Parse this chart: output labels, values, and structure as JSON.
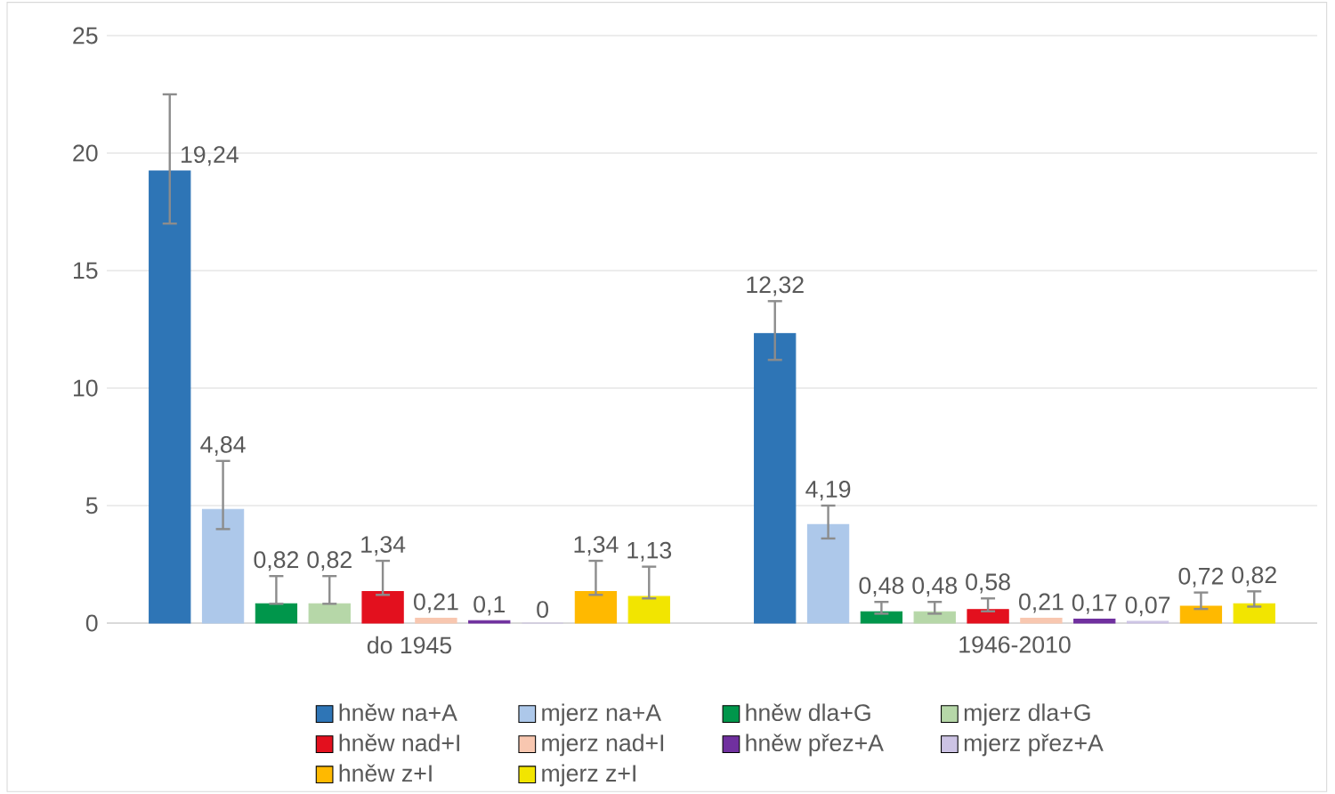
{
  "chart_data": {
    "type": "bar",
    "categories": [
      "do 1945",
      "1946-2010"
    ],
    "series": [
      {
        "name": "hněw na+A",
        "color": "#2e75b6",
        "values": [
          19.24,
          12.32
        ],
        "value_labels": [
          "19,24",
          "12,32"
        ],
        "errors": [
          [
            17.0,
            22.5
          ],
          [
            11.2,
            13.7
          ]
        ]
      },
      {
        "name": "mjerz na+A",
        "color": "#adc8ea",
        "values": [
          4.84,
          4.19
        ],
        "value_labels": [
          "4,84",
          "4,19"
        ],
        "errors": [
          [
            4.0,
            6.9
          ],
          [
            3.6,
            5.0
          ]
        ]
      },
      {
        "name": "hněw dla+G",
        "color": "#00964b",
        "values": [
          0.82,
          0.48
        ],
        "value_labels": [
          "0,82",
          "0,48"
        ],
        "errors": [
          [
            0.82,
            2.0
          ],
          [
            0.4,
            0.9
          ]
        ]
      },
      {
        "name": "mjerz dla+G",
        "color": "#b6d7a8",
        "values": [
          0.82,
          0.48
        ],
        "value_labels": [
          "0,82",
          "0,48"
        ],
        "errors": [
          [
            0.82,
            2.0
          ],
          [
            0.4,
            0.9
          ]
        ]
      },
      {
        "name": "hněw nad+I",
        "color": "#e3101e",
        "values": [
          1.34,
          0.58
        ],
        "value_labels": [
          "1,34",
          "0,58"
        ],
        "errors": [
          [
            1.2,
            2.65
          ],
          [
            0.5,
            1.05
          ]
        ]
      },
      {
        "name": "mjerz nad+I",
        "color": "#f8c7b0",
        "values": [
          0.21,
          0.21
        ],
        "value_labels": [
          "0,21",
          "0,21"
        ],
        "errors": [
          null,
          null
        ]
      },
      {
        "name": "hněw přez+A",
        "color": "#70309f",
        "values": [
          0.1,
          0.17
        ],
        "value_labels": [
          "0,1",
          "0,17"
        ],
        "errors": [
          null,
          null
        ]
      },
      {
        "name": "mjerz přez+A",
        "color": "#ccc3e4",
        "values": [
          0,
          0.07
        ],
        "value_labels": [
          "0",
          "0,07"
        ],
        "errors": [
          null,
          null
        ]
      },
      {
        "name": "hněw z+I",
        "color": "#ffb900",
        "values": [
          1.34,
          0.72
        ],
        "value_labels": [
          "1,34",
          "0,72"
        ],
        "errors": [
          [
            1.2,
            2.65
          ],
          [
            0.6,
            1.3
          ]
        ]
      },
      {
        "name": "mjerz z+I",
        "color": "#f2e500",
        "values": [
          1.13,
          0.82
        ],
        "value_labels": [
          "1,13",
          "0,82"
        ],
        "errors": [
          [
            1.05,
            2.4
          ],
          [
            0.7,
            1.35
          ]
        ]
      }
    ],
    "ylim": [
      0,
      25
    ],
    "yticks": [
      0,
      5,
      10,
      15,
      20,
      25
    ],
    "grid": "y",
    "legend": "bottom"
  }
}
